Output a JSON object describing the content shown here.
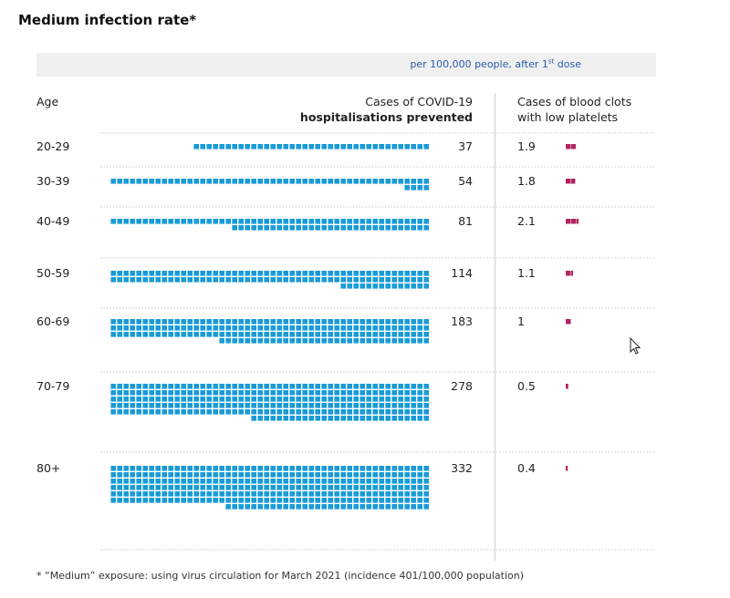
{
  "title": "Medium infection rate*",
  "banner": {
    "prefix": "per 100,000 people, after 1",
    "sup": "st",
    "suffix": " dose"
  },
  "headers": {
    "age": "Age",
    "cases_line1": "Cases of COVID-19",
    "cases_line2": "hospitalisations prevented",
    "clots_line1": "Cases of blood clots",
    "clots_line2": "with low platelets"
  },
  "footnote": "* “Medium” exposure: using virus circulation for March 2021 (incidence 401/100,000 population)",
  "colors": {
    "hospital": "#1a9bd7",
    "clots": "#b0245f",
    "rule": "#c8c8c8"
  },
  "chart_data": {
    "type": "table",
    "title": "Medium infection rate*",
    "unit": "per 100,000 people, after 1st dose",
    "columns": [
      "Age",
      "Cases of COVID-19 hospitalisations prevented",
      "Cases of blood clots with low platelets"
    ],
    "rows": [
      {
        "age": "20-29",
        "hospitalisations": 37,
        "hospitalisations_label": "37",
        "clots": 1.9,
        "clots_label": "1.9"
      },
      {
        "age": "30-39",
        "hospitalisations": 54,
        "hospitalisations_label": "54",
        "clots": 1.8,
        "clots_label": "1.8"
      },
      {
        "age": "40-49",
        "hospitalisations": 81,
        "hospitalisations_label": "81",
        "clots": 2.1,
        "clots_label": "2.1"
      },
      {
        "age": "50-59",
        "hospitalisations": 114,
        "hospitalisations_label": "114",
        "clots": 1.1,
        "clots_label": "1.1"
      },
      {
        "age": "60-69",
        "hospitalisations": 183,
        "hospitalisations_label": "183",
        "clots": 1,
        "clots_label": "1"
      },
      {
        "age": "70-79",
        "hospitalisations": 278,
        "hospitalisations_label": "278",
        "clots": 0.5,
        "clots_label": "0.5"
      },
      {
        "age": "80+",
        "hospitalisations": 332,
        "hospitalisations_label": "332",
        "clots": 0.4,
        "clots_label": "0.4"
      }
    ]
  }
}
